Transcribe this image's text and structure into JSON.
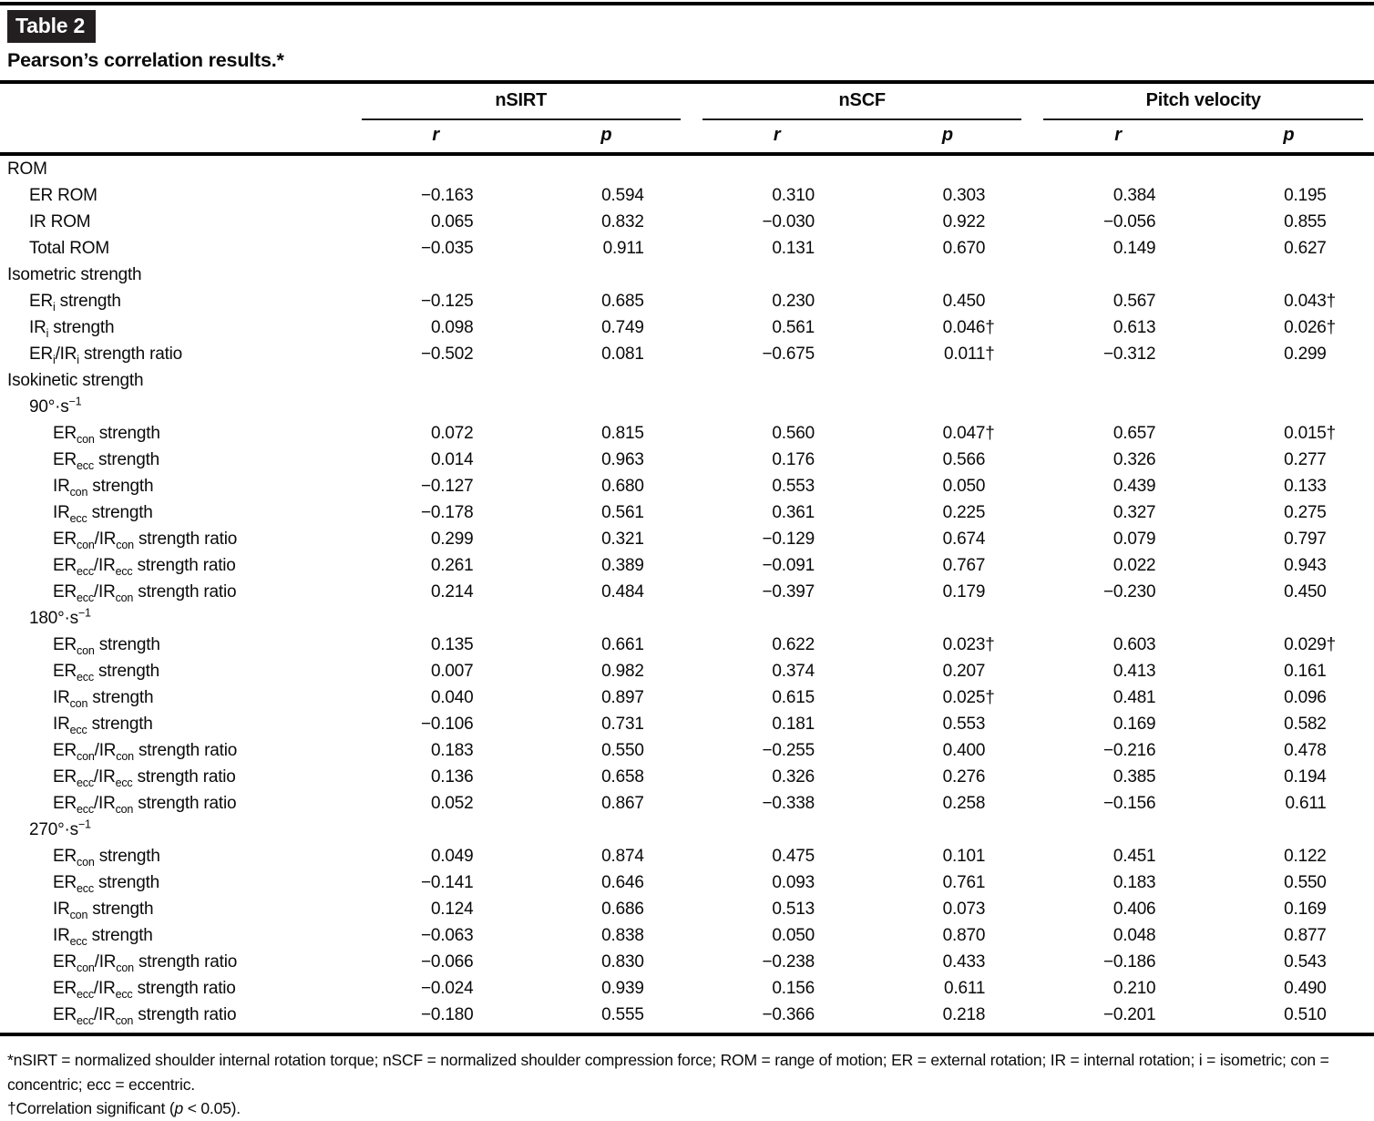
{
  "page": {
    "table_tag": "Table 2",
    "title": "Pearson’s correlation results.*"
  },
  "table": {
    "groups": [
      {
        "label": "nSIRT",
        "sub": [
          "r",
          "p"
        ]
      },
      {
        "label": "nSCF",
        "sub": [
          "r",
          "p"
        ]
      },
      {
        "label": "Pitch velocity",
        "sub": [
          "r",
          "p"
        ]
      }
    ],
    "significance_marker": "†",
    "rows": [
      {
        "label": "ROM",
        "indent": 0,
        "section": true,
        "values": [
          "",
          "",
          "",
          "",
          "",
          ""
        ]
      },
      {
        "label": "ER ROM",
        "indent": 1,
        "values": [
          "−0.163",
          "0.594",
          "0.310",
          "0.303",
          "0.384",
          "0.195"
        ]
      },
      {
        "label": "IR ROM",
        "indent": 1,
        "values": [
          "0.065",
          "0.832",
          "−0.030",
          "0.922",
          "−0.056",
          "0.855"
        ]
      },
      {
        "label": "Total ROM",
        "indent": 1,
        "values": [
          "−0.035",
          "0.911",
          "0.131",
          "0.670",
          "0.149",
          "0.627"
        ]
      },
      {
        "label": "Isometric strength",
        "indent": 0,
        "section": true,
        "values": [
          "",
          "",
          "",
          "",
          "",
          ""
        ]
      },
      {
        "label": "ER~i~ strength",
        "indent": 1,
        "values": [
          "−0.125",
          "0.685",
          "0.230",
          "0.450",
          "0.567",
          "0.043†"
        ]
      },
      {
        "label": "IR~i~ strength",
        "indent": 1,
        "values": [
          "0.098",
          "0.749",
          "0.561",
          "0.046†",
          "0.613",
          "0.026†"
        ]
      },
      {
        "label": "ER~i~/IR~i~ strength ratio",
        "indent": 1,
        "values": [
          "−0.502",
          "0.081",
          "−0.675",
          "0.011†",
          "−0.312",
          "0.299"
        ]
      },
      {
        "label": "Isokinetic strength",
        "indent": 0,
        "section": true,
        "values": [
          "",
          "",
          "",
          "",
          "",
          ""
        ]
      },
      {
        "label": "90°·s^−1^",
        "indent": 1,
        "section": true,
        "values": [
          "",
          "",
          "",
          "",
          "",
          ""
        ]
      },
      {
        "label": "ER~con~ strength",
        "indent": 2,
        "values": [
          "0.072",
          "0.815",
          "0.560",
          "0.047†",
          "0.657",
          "0.015†"
        ]
      },
      {
        "label": "ER~ecc~ strength",
        "indent": 2,
        "values": [
          "0.014",
          "0.963",
          "0.176",
          "0.566",
          "0.326",
          "0.277"
        ]
      },
      {
        "label": "IR~con~ strength",
        "indent": 2,
        "values": [
          "−0.127",
          "0.680",
          "0.553",
          "0.050",
          "0.439",
          "0.133"
        ]
      },
      {
        "label": "IR~ecc~ strength",
        "indent": 2,
        "values": [
          "−0.178",
          "0.561",
          "0.361",
          "0.225",
          "0.327",
          "0.275"
        ]
      },
      {
        "label": "ER~con~/IR~con~ strength ratio",
        "indent": 2,
        "values": [
          "0.299",
          "0.321",
          "−0.129",
          "0.674",
          "0.079",
          "0.797"
        ]
      },
      {
        "label": "ER~ecc~/IR~ecc~ strength ratio",
        "indent": 2,
        "values": [
          "0.261",
          "0.389",
          "−0.091",
          "0.767",
          "0.022",
          "0.943"
        ]
      },
      {
        "label": "ER~ecc~/IR~con~ strength ratio",
        "indent": 2,
        "values": [
          "0.214",
          "0.484",
          "−0.397",
          "0.179",
          "−0.230",
          "0.450"
        ]
      },
      {
        "label": "180°·s^−1^",
        "indent": 1,
        "section": true,
        "values": [
          "",
          "",
          "",
          "",
          "",
          ""
        ]
      },
      {
        "label": "ER~con~ strength",
        "indent": 2,
        "values": [
          "0.135",
          "0.661",
          "0.622",
          "0.023†",
          "0.603",
          "0.029†"
        ]
      },
      {
        "label": "ER~ecc~ strength",
        "indent": 2,
        "values": [
          "0.007",
          "0.982",
          "0.374",
          "0.207",
          "0.413",
          "0.161"
        ]
      },
      {
        "label": "IR~con~ strength",
        "indent": 2,
        "values": [
          "0.040",
          "0.897",
          "0.615",
          "0.025†",
          "0.481",
          "0.096"
        ]
      },
      {
        "label": "IR~ecc~ strength",
        "indent": 2,
        "values": [
          "−0.106",
          "0.731",
          "0.181",
          "0.553",
          "0.169",
          "0.582"
        ]
      },
      {
        "label": "ER~con~/IR~con~ strength ratio",
        "indent": 2,
        "values": [
          "0.183",
          "0.550",
          "−0.255",
          "0.400",
          "−0.216",
          "0.478"
        ]
      },
      {
        "label": "ER~ecc~/IR~ecc~ strength ratio",
        "indent": 2,
        "values": [
          "0.136",
          "0.658",
          "0.326",
          "0.276",
          "0.385",
          "0.194"
        ]
      },
      {
        "label": "ER~ecc~/IR~con~ strength ratio",
        "indent": 2,
        "values": [
          "0.052",
          "0.867",
          "−0.338",
          "0.258",
          "−0.156",
          "0.611"
        ]
      },
      {
        "label": "270°·s^−1^",
        "indent": 1,
        "section": true,
        "values": [
          "",
          "",
          "",
          "",
          "",
          ""
        ]
      },
      {
        "label": "ER~con~ strength",
        "indent": 2,
        "values": [
          "0.049",
          "0.874",
          "0.475",
          "0.101",
          "0.451",
          "0.122"
        ]
      },
      {
        "label": "ER~ecc~ strength",
        "indent": 2,
        "values": [
          "−0.141",
          "0.646",
          "0.093",
          "0.761",
          "0.183",
          "0.550"
        ]
      },
      {
        "label": "IR~con~ strength",
        "indent": 2,
        "values": [
          "0.124",
          "0.686",
          "0.513",
          "0.073",
          "0.406",
          "0.169"
        ]
      },
      {
        "label": "IR~ecc~ strength",
        "indent": 2,
        "values": [
          "−0.063",
          "0.838",
          "0.050",
          "0.870",
          "0.048",
          "0.877"
        ]
      },
      {
        "label": "ER~con~/IR~con~ strength ratio",
        "indent": 2,
        "values": [
          "−0.066",
          "0.830",
          "−0.238",
          "0.433",
          "−0.186",
          "0.543"
        ]
      },
      {
        "label": "ER~ecc~/IR~ecc~ strength ratio",
        "indent": 2,
        "values": [
          "−0.024",
          "0.939",
          "0.156",
          "0.611",
          "0.210",
          "0.490"
        ]
      },
      {
        "label": "ER~ecc~/IR~con~ strength ratio",
        "indent": 2,
        "values": [
          "−0.180",
          "0.555",
          "−0.366",
          "0.218",
          "−0.201",
          "0.510"
        ]
      }
    ]
  },
  "footnotes": [
    "*nSIRT = normalized shoulder internal rotation torque; nSCF = normalized shoulder compression force; ROM = range of motion; ER = external rotation; IR = internal rotation; i = isometric; con = concentric; ecc = eccentric.",
    "†Correlation significant (_p_ < 0.05)."
  ],
  "colors": {
    "badge_background": "#231f20",
    "badge_text": "#ffffff",
    "rule": "#000000",
    "text": "#0a0a0a"
  }
}
